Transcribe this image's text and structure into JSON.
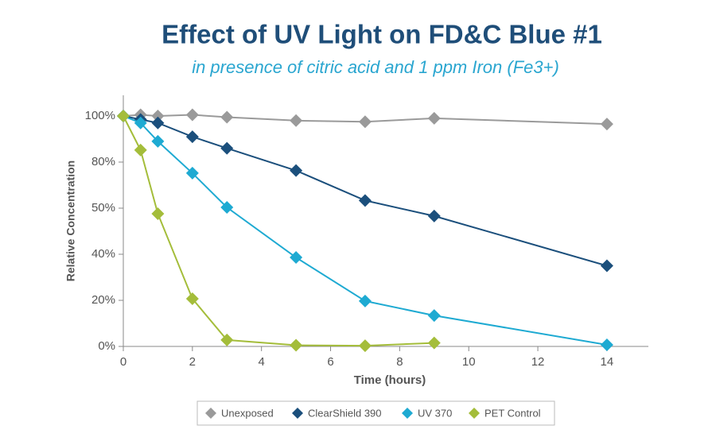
{
  "chart_data": {
    "type": "line",
    "title": "Effect of UV Light on FD&C Blue #1",
    "subtitle": "in presence of citric acid and 1 ppm Iron (Fe3+)",
    "x_label": "Time (hours)",
    "y_label": "Relative Concentration",
    "xlim": [
      0,
      15.2
    ],
    "xticks": [
      0,
      2,
      4,
      6,
      8,
      10,
      12,
      14
    ],
    "ylim": [
      0,
      109
    ],
    "yticks": [
      {
        "value": 0,
        "label": "0%"
      },
      {
        "value": 20,
        "label": "20%"
      },
      {
        "value": 40,
        "label": "40%"
      },
      {
        "value": 50,
        "label": "50%"
      },
      {
        "value": 80,
        "label": "80%"
      },
      {
        "value": 100,
        "label": "100%"
      }
    ],
    "x": [
      0,
      0.5,
      1,
      2,
      3,
      5,
      7,
      9,
      14
    ],
    "series": [
      {
        "name": "Unexposed",
        "color": "#9a9a9a",
        "values": [
          100,
          100.5,
          100,
          100.5,
          99.5,
          98,
          97.5,
          99,
          96.5
        ]
      },
      {
        "name": "ClearShield 390",
        "color": "#1b4f7c",
        "values": [
          100,
          98.5,
          97,
          91,
          86,
          74.5,
          55,
          48.3,
          35
        ]
      },
      {
        "name": "UV 370",
        "color": "#1eaad2",
        "values": [
          100,
          97,
          89,
          72.8,
          50.5,
          38.6,
          19.7,
          13.4,
          0.7
        ]
      },
      {
        "name": "PET Control",
        "color": "#a4bd3a",
        "values": [
          100,
          85.2,
          48.8,
          20.7,
          2.8,
          0.5,
          0.3,
          1.5,
          null
        ]
      }
    ],
    "grid": false,
    "legend": "bottom"
  }
}
